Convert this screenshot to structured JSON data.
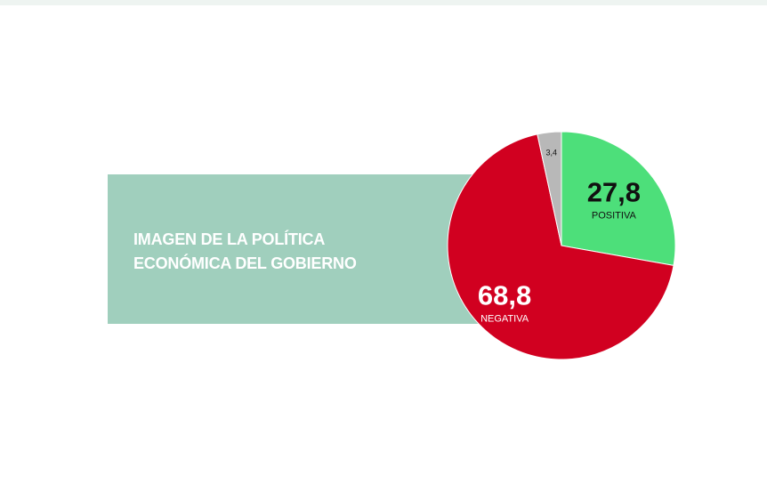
{
  "colors": {
    "top_strip": "#eef4f1",
    "banner": "#a0cfbd",
    "positiva": "#4ddf7a",
    "negativa": "#d10020",
    "other": "#b8b8b8"
  },
  "banner": {
    "line1": "IMAGEN DE LA POLÍTICA",
    "line2": "ECONÓMICA DEL GOBIERNO"
  },
  "chart_data": {
    "type": "pie",
    "title": "IMAGEN DE LA POLÍTICA ECONÓMICA DEL GOBIERNO",
    "slices": [
      {
        "name": "POSITIVA",
        "value": 27.8,
        "label": "27,8",
        "color": "#4ddf7a"
      },
      {
        "name": "NEGATIVA",
        "value": 68.8,
        "label": "68,8",
        "color": "#d10020"
      },
      {
        "name": "",
        "value": 3.4,
        "label": "3,4",
        "color": "#b8b8b8"
      }
    ],
    "start": "top",
    "direction": "clockwise"
  }
}
